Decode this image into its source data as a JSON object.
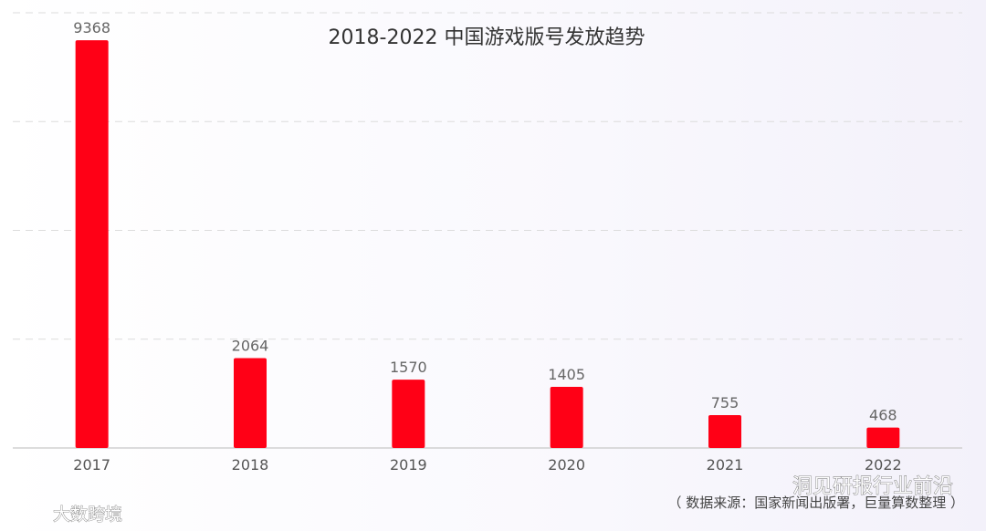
{
  "chart_data": {
    "type": "bar",
    "title": "2018-2022 中国游戏版号发放趋势",
    "categories": [
      "2017",
      "2018",
      "2019",
      "2020",
      "2021",
      "2022"
    ],
    "values": [
      9368,
      2064,
      1570,
      1405,
      755,
      468
    ],
    "ylim": [
      0,
      10000
    ],
    "grid": true,
    "bar_color": "#ff0016",
    "data_labels": [
      "9368",
      "2064",
      "1570",
      "1405",
      "755",
      "468"
    ],
    "source": "（ 数据来源：国家新闻出版署，巨量算数整理 ）"
  },
  "watermarks": {
    "left": "大数跨境",
    "right": "洞见研报行业前沿"
  },
  "colors": {
    "bar": "#ff0016",
    "grid": "#dcdcdc",
    "axis": "#d0d0d0"
  }
}
